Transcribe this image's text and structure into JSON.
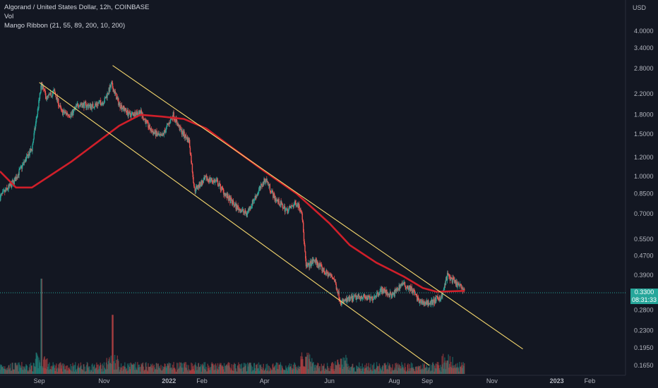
{
  "legend": {
    "title": "Algorand / United States Dollar, 12h, COINBASE",
    "vol": "Vol",
    "indicator": "Mango Ribbon (21, 55, 89, 200, 10, 200)"
  },
  "price_axis": {
    "currency": "USD",
    "last_price": "0.3300",
    "countdown": "08:31:33"
  },
  "colors": {
    "background": "#131722",
    "up": "#26a69a",
    "down": "#ef5350",
    "ribbon": "#d01f2a",
    "channel": "#f5d76e",
    "axis_text": "#b2b5be"
  },
  "chart_data": {
    "type": "candlestick",
    "title": "Algorand / United States Dollar, 12h, COINBASE",
    "y_scale": "log",
    "y_ticks": [
      4.0,
      3.4,
      2.8,
      2.2,
      1.8,
      1.5,
      1.2,
      1.0,
      0.85,
      0.7,
      0.55,
      0.47,
      0.39,
      0.33,
      0.28,
      0.23,
      0.195,
      0.165
    ],
    "y_tick_labels": [
      "4.0000",
      "3.4000",
      "2.8000",
      "2.2000",
      "1.8000",
      "1.5000",
      "1.2000",
      "1.0000",
      "0.8500",
      "0.7000",
      "0.5500",
      "0.4700",
      "0.3900",
      "0.3300",
      "0.2800",
      "0.2300",
      "0.1950",
      "0.1650"
    ],
    "x_tick_labels": [
      "Sep",
      "Nov",
      "2022",
      "Feb",
      "Apr",
      "Jun",
      "Aug",
      "Sep",
      "Nov",
      "2023",
      "Feb"
    ],
    "x_tick_dates": [
      "2021-09-01",
      "2021-11-01",
      "2022-01-01",
      "2022-02-01",
      "2022-04-01",
      "2022-06-01",
      "2022-08-01",
      "2022-09-01",
      "2022-11-01",
      "2023-01-01",
      "2023-02-01"
    ],
    "x_range": [
      "2021-07-26",
      "2023-03-06"
    ],
    "price_path": [
      [
        "2021-07-26",
        0.82
      ],
      [
        "2021-08-08",
        0.95
      ],
      [
        "2021-08-18",
        1.15
      ],
      [
        "2021-08-25",
        1.3
      ],
      [
        "2021-08-31",
        1.95
      ],
      [
        "2021-09-03",
        2.4
      ],
      [
        "2021-09-08",
        2.1
      ],
      [
        "2021-09-15",
        2.25
      ],
      [
        "2021-09-22",
        1.85
      ],
      [
        "2021-10-01",
        1.8
      ],
      [
        "2021-10-08",
        2.0
      ],
      [
        "2021-10-20",
        1.95
      ],
      [
        "2021-11-01",
        2.05
      ],
      [
        "2021-11-08",
        2.4
      ],
      [
        "2021-11-15",
        2.0
      ],
      [
        "2021-11-25",
        1.8
      ],
      [
        "2021-12-05",
        1.85
      ],
      [
        "2021-12-15",
        1.55
      ],
      [
        "2021-12-25",
        1.45
      ],
      [
        "2022-01-05",
        1.8
      ],
      [
        "2022-01-12",
        1.55
      ],
      [
        "2022-01-20",
        1.4
      ],
      [
        "2022-01-25",
        0.88
      ],
      [
        "2022-02-05",
        0.98
      ],
      [
        "2022-02-15",
        0.95
      ],
      [
        "2022-02-25",
        0.82
      ],
      [
        "2022-03-05",
        0.75
      ],
      [
        "2022-03-15",
        0.7
      ],
      [
        "2022-03-25",
        0.85
      ],
      [
        "2022-04-02",
        0.98
      ],
      [
        "2022-04-10",
        0.82
      ],
      [
        "2022-04-22",
        0.72
      ],
      [
        "2022-05-01",
        0.78
      ],
      [
        "2022-05-06",
        0.72
      ],
      [
        "2022-05-10",
        0.42
      ],
      [
        "2022-05-18",
        0.45
      ],
      [
        "2022-05-28",
        0.4
      ],
      [
        "2022-06-05",
        0.38
      ],
      [
        "2022-06-12",
        0.3
      ],
      [
        "2022-06-20",
        0.31
      ],
      [
        "2022-07-01",
        0.32
      ],
      [
        "2022-07-10",
        0.31
      ],
      [
        "2022-07-20",
        0.34
      ],
      [
        "2022-07-30",
        0.32
      ],
      [
        "2022-08-08",
        0.36
      ],
      [
        "2022-08-18",
        0.34
      ],
      [
        "2022-08-25",
        0.3
      ],
      [
        "2022-09-05",
        0.3
      ],
      [
        "2022-09-15",
        0.32
      ],
      [
        "2022-09-20",
        0.39
      ],
      [
        "2022-09-28",
        0.36
      ],
      [
        "2022-10-06",
        0.34
      ]
    ],
    "last_price": 0.33,
    "ribbon_ma": [
      [
        "2021-07-26",
        1.05
      ],
      [
        "2021-08-10",
        0.9
      ],
      [
        "2021-08-25",
        0.9
      ],
      [
        "2021-09-10",
        1.0
      ],
      [
        "2021-10-01",
        1.15
      ],
      [
        "2021-10-25",
        1.38
      ],
      [
        "2021-11-15",
        1.62
      ],
      [
        "2021-12-05",
        1.8
      ],
      [
        "2021-12-25",
        1.77
      ],
      [
        "2022-01-15",
        1.73
      ],
      [
        "2022-02-05",
        1.58
      ],
      [
        "2022-03-01",
        1.32
      ],
      [
        "2022-04-01",
        1.05
      ],
      [
        "2022-05-01",
        0.85
      ],
      [
        "2022-06-01",
        0.64
      ],
      [
        "2022-06-20",
        0.52
      ],
      [
        "2022-07-15",
        0.44
      ],
      [
        "2022-08-10",
        0.385
      ],
      [
        "2022-08-28",
        0.345
      ],
      [
        "2022-09-10",
        0.333
      ],
      [
        "2022-10-06",
        0.336
      ]
    ],
    "channel_upper": [
      [
        "2021-11-09",
        2.88
      ],
      [
        "2022-11-30",
        0.193
      ]
    ],
    "channel_lower": [
      [
        "2021-09-01",
        2.45
      ],
      [
        "2022-09-03",
        0.165
      ]
    ],
    "volume": {
      "units": "relative",
      "spikes": [
        [
          "2021-09-03",
          1.0
        ],
        [
          "2021-11-09",
          0.62
        ],
        [
          "2022-05-10",
          0.18
        ],
        [
          "2022-06-12",
          0.16
        ],
        [
          "2022-09-20",
          0.14
        ]
      ]
    }
  }
}
